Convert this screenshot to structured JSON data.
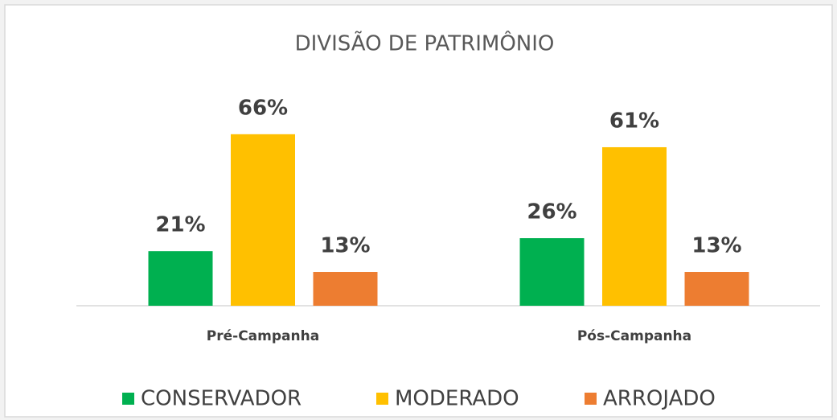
{
  "chart_data": {
    "type": "bar",
    "title": "DIVISÃO DE PATRIMÔNIO",
    "categories": [
      "Pré-Campanha",
      "Pós-Campanha"
    ],
    "series": [
      {
        "name": "CONSERVADOR",
        "color": "#00b050",
        "values": [
          21,
          26
        ],
        "value_labels": [
          "21%",
          "26%"
        ]
      },
      {
        "name": "MODERADO",
        "color": "#ffc000",
        "values": [
          66,
          61
        ],
        "value_labels": [
          "66%",
          "61%"
        ]
      },
      {
        "name": "ARROJADO",
        "color": "#ed7d31",
        "values": [
          13,
          13
        ],
        "value_labels": [
          "13%",
          "13%"
        ]
      }
    ],
    "legend": "bottom"
  }
}
